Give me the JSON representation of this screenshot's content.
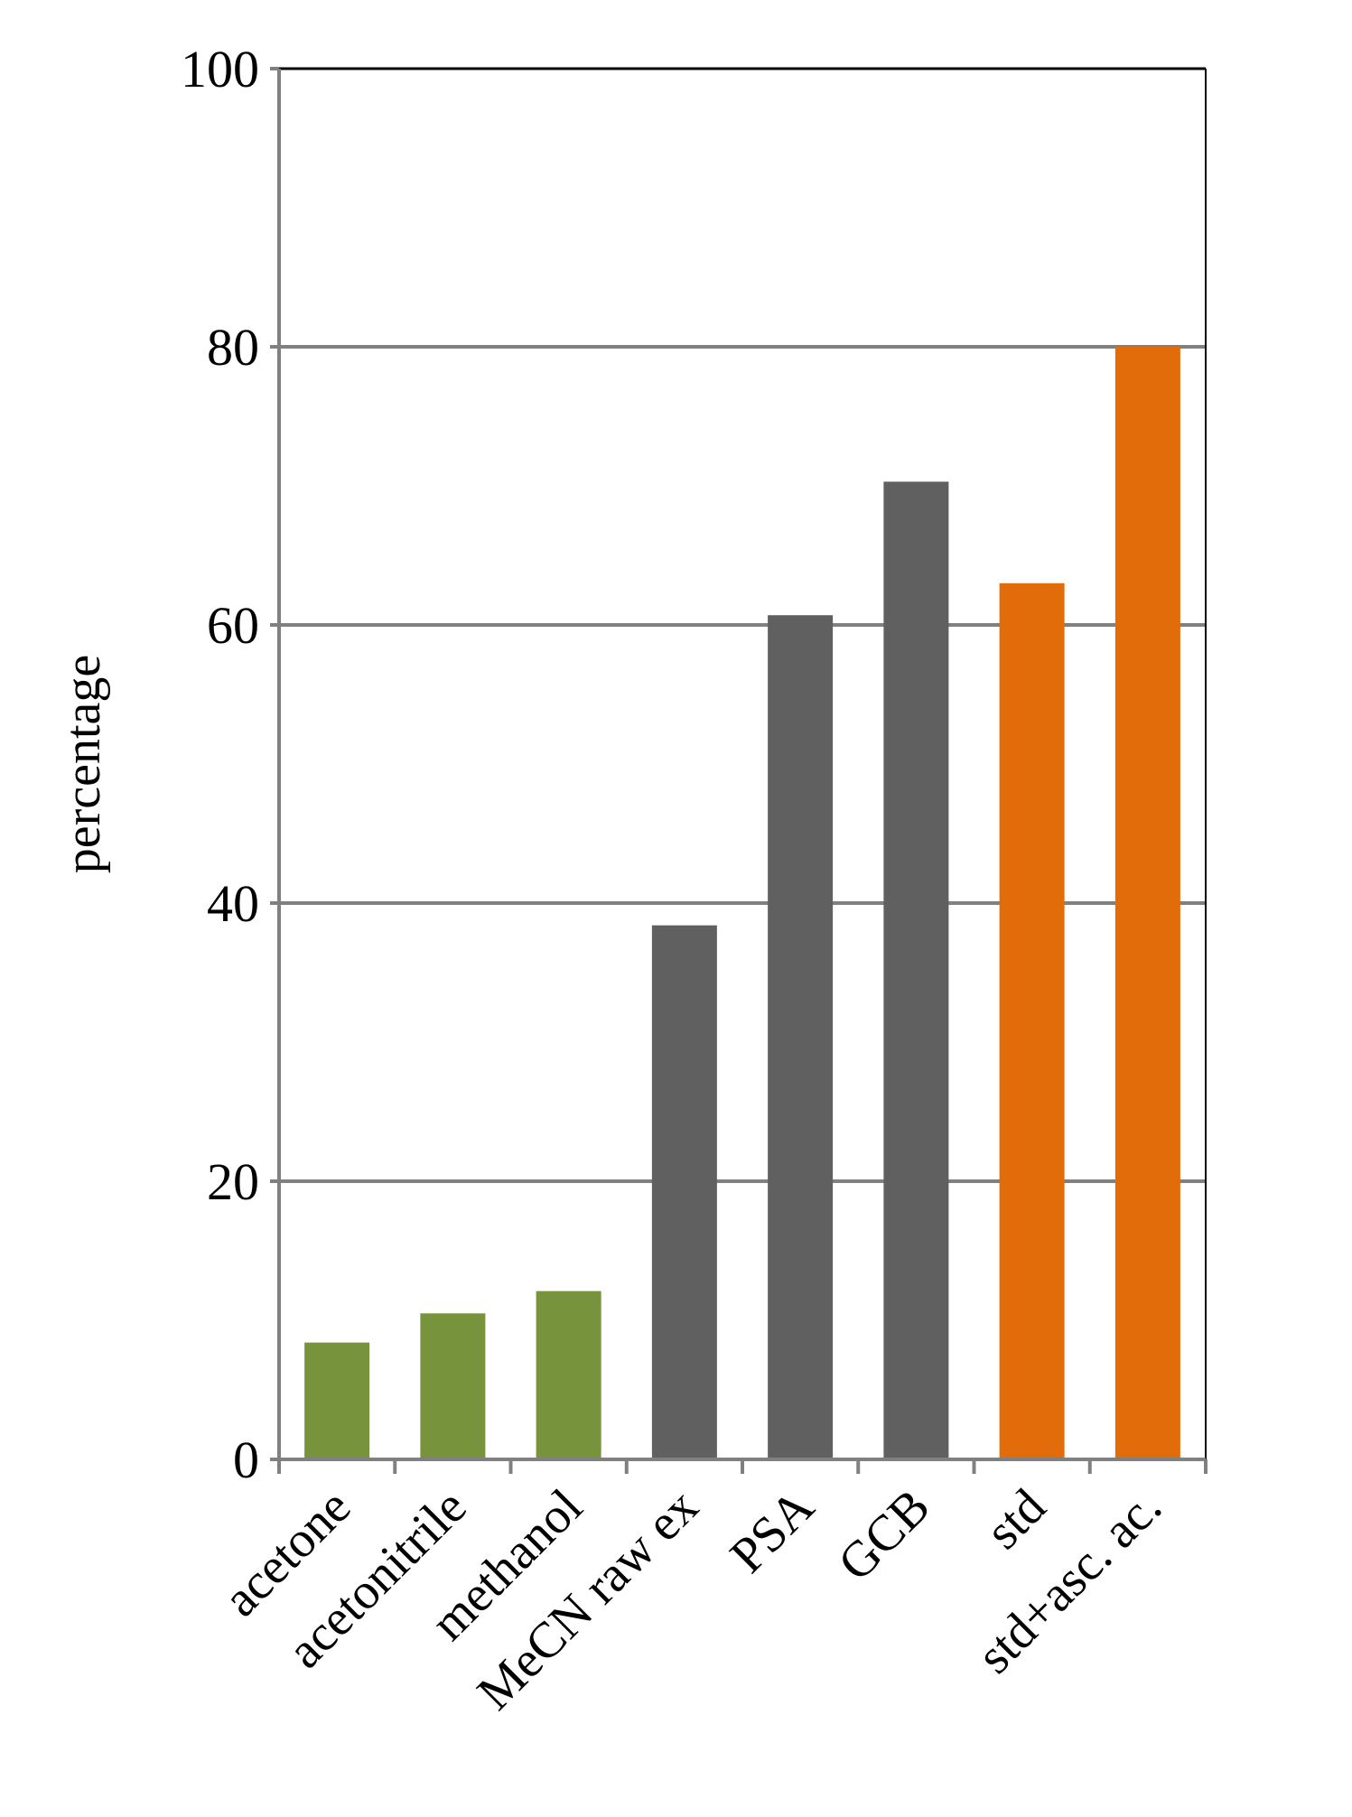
{
  "chart_data": {
    "type": "bar",
    "title": "",
    "xlabel": "",
    "ylabel": "percentage",
    "ylim": [
      0,
      100
    ],
    "yticks": [
      0,
      20,
      40,
      60,
      80,
      100
    ],
    "grid": true,
    "legend": "none",
    "categories": [
      "acetone",
      "acetonitrile",
      "methanol",
      "MeCN raw ex",
      "PSA",
      "GCB",
      "std",
      "std+asc. ac."
    ],
    "values": [
      8.4,
      10.5,
      12.1,
      38.4,
      60.7,
      70.3,
      63.0,
      80.0
    ],
    "colors": [
      "#77933c",
      "#77933c",
      "#77933c",
      "#606060",
      "#606060",
      "#606060",
      "#e36c0a",
      "#e36c0a"
    ],
    "gridline_color": "#808080",
    "axis_color": "#808080"
  }
}
